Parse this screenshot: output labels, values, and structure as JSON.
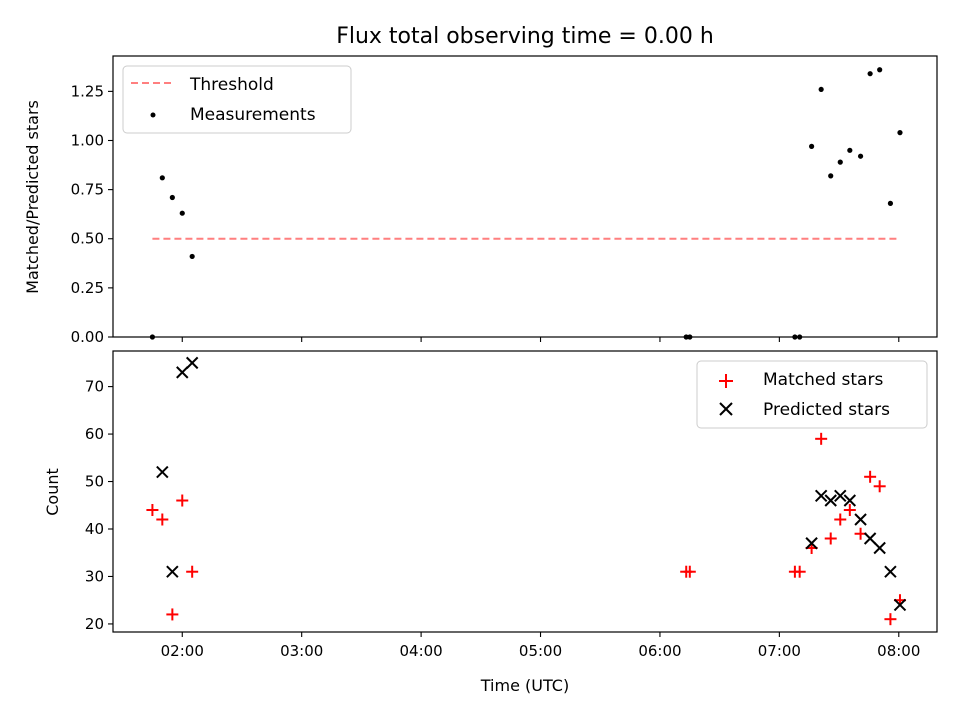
{
  "chart_data": [
    {
      "type": "scatter",
      "title": "Flux total observing time = 0.00 h",
      "ylabel": "Matched/Predicted stars",
      "xlabel": "",
      "xlim": [
        1.42,
        8.32
      ],
      "ylim": [
        0,
        1.43
      ],
      "yticks": [
        0.0,
        0.25,
        0.5,
        0.75,
        1.0,
        1.25
      ],
      "ytick_labels": [
        "0.00",
        "0.25",
        "0.50",
        "0.75",
        "1.00",
        "1.25"
      ],
      "xticks": [
        2,
        3,
        4,
        5,
        6,
        7,
        8
      ],
      "xtick_labels": [
        "",
        "",
        "",
        "",
        "",
        "",
        ""
      ],
      "legend_position": "top-left",
      "series": [
        {
          "name": "Threshold",
          "style": "dashed-line",
          "color": "#ff7f7f",
          "x": [
            1.75,
            8.0
          ],
          "y": [
            0.5,
            0.5
          ]
        },
        {
          "name": "Measurements",
          "style": "dot",
          "color": "#000000",
          "x": [
            1.75,
            1.833,
            1.917,
            2.0,
            2.083,
            6.22,
            6.25,
            7.13,
            7.17,
            7.27,
            7.35,
            7.43,
            7.51,
            7.59,
            7.68,
            7.76,
            7.84,
            7.93,
            8.01
          ],
          "y": [
            0.0,
            0.81,
            0.71,
            0.63,
            0.41,
            0.0,
            0.0,
            0.0,
            0.0,
            0.97,
            1.26,
            0.82,
            0.89,
            0.95,
            0.92,
            1.34,
            1.36,
            0.68,
            1.04
          ]
        }
      ]
    },
    {
      "type": "scatter",
      "title": "",
      "ylabel": "Count",
      "xlabel": "Time (UTC)",
      "xlim": [
        1.42,
        8.32
      ],
      "ylim": [
        18.3,
        77.5
      ],
      "yticks": [
        20,
        30,
        40,
        50,
        60,
        70
      ],
      "ytick_labels": [
        "20",
        "30",
        "40",
        "50",
        "60",
        "70"
      ],
      "xticks": [
        2,
        3,
        4,
        5,
        6,
        7,
        8
      ],
      "xtick_labels": [
        "02:00",
        "03:00",
        "04:00",
        "05:00",
        "06:00",
        "07:00",
        "08:00"
      ],
      "legend_position": "top-right",
      "series": [
        {
          "name": "Matched stars",
          "marker": "plus",
          "color": "#ff0000",
          "x": [
            1.75,
            1.833,
            1.917,
            2.0,
            2.083,
            6.22,
            6.25,
            7.13,
            7.17,
            7.27,
            7.35,
            7.43,
            7.51,
            7.59,
            7.68,
            7.76,
            7.84,
            7.93,
            8.01
          ],
          "y": [
            44,
            42,
            22,
            46,
            31,
            31,
            31,
            31,
            31,
            36,
            59,
            38,
            42,
            44,
            39,
            51,
            49,
            21,
            25
          ]
        },
        {
          "name": "Predicted stars",
          "marker": "x",
          "color": "#000000",
          "x": [
            1.833,
            1.917,
            2.0,
            2.083,
            7.27,
            7.35,
            7.43,
            7.51,
            7.59,
            7.68,
            7.76,
            7.84,
            7.93,
            8.01
          ],
          "y": [
            52,
            31,
            73,
            75,
            37,
            47,
            46,
            47,
            46,
            42,
            38,
            36,
            31,
            24
          ]
        }
      ]
    }
  ]
}
